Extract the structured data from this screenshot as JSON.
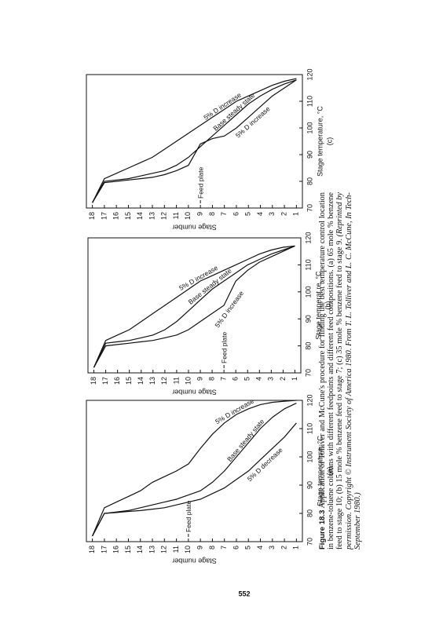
{
  "chart_data": [
    {
      "type": "line",
      "panel": "(a)",
      "x_label": "Stage temperature, °C",
      "y_label": "Stage number",
      "xlim": [
        70,
        120
      ],
      "xticks": [
        70,
        80,
        90,
        100,
        110,
        120
      ],
      "ylim": [
        0.5,
        18.5
      ],
      "yticks": [
        1,
        2,
        3,
        4,
        5,
        6,
        7,
        8,
        9,
        10,
        11,
        12,
        13,
        14,
        15,
        16,
        17,
        18
      ],
      "stages": [
        1,
        2,
        3,
        4,
        5,
        6,
        7,
        8,
        9,
        10,
        11,
        12,
        13,
        14,
        15,
        16,
        17,
        18
      ],
      "feed_stage": 10,
      "feed_label": "Feed plate",
      "series": [
        {
          "name": "5% D increase",
          "color": "#111111",
          "values": [
            120,
            119.7,
            119.3,
            118.5,
            117,
            115,
            112,
            108,
            103,
            97.5,
            95,
            93,
            91,
            88,
            86,
            84,
            82,
            72
          ]
        },
        {
          "name": "Base steady state",
          "color": "#111111",
          "values": [
            119,
            117,
            114,
            110,
            105,
            100,
            95,
            91,
            88,
            86.5,
            85,
            84,
            83,
            82,
            81,
            80.5,
            80,
            72
          ]
        },
        {
          "name": "5% D decrease",
          "color": "#111111",
          "values": [
            112,
            107,
            103,
            99,
            95,
            92,
            89,
            87,
            85,
            84,
            83,
            82,
            81.5,
            81,
            80.7,
            80.3,
            80,
            72
          ]
        }
      ]
    },
    {
      "type": "line",
      "panel": "(b)",
      "x_label": "Stage temperat.re, °C",
      "y_label": "Stage number",
      "xlim": [
        70,
        120
      ],
      "xticks": [
        70,
        80,
        90,
        100,
        110,
        120
      ],
      "ylim": [
        0.5,
        18.5
      ],
      "yticks": [
        1,
        2,
        3,
        4,
        5,
        6,
        7,
        8,
        9,
        10,
        11,
        12,
        13,
        14,
        15,
        16,
        17,
        18
      ],
      "stages": [
        1,
        2,
        3,
        4,
        5,
        6,
        7,
        8,
        9,
        10,
        11,
        12,
        13,
        14,
        15,
        16,
        17,
        18
      ],
      "feed_stage": 7,
      "feed_label": "Feed plate",
      "series": [
        {
          "name": "5% D increase",
          "color": "#111111",
          "values": [
            117,
            116.5,
            115.5,
            114,
            112,
            110,
            108,
            106,
            104,
            101,
            98,
            95,
            92,
            89,
            86,
            84,
            82,
            72
          ]
        },
        {
          "name": "Base steady state",
          "color": "#111111",
          "values": [
            117,
            115.5,
            114,
            112,
            110,
            107,
            104,
            101,
            97,
            93,
            89,
            86,
            84,
            83,
            82,
            81.5,
            81,
            72
          ]
        },
        {
          "name": "5% D increase",
          "color": "#111111",
          "values": [
            117,
            115,
            113,
            111,
            108,
            104,
            95,
            92,
            89,
            86,
            84,
            83,
            82,
            81.5,
            81,
            80.5,
            80,
            72
          ]
        }
      ]
    },
    {
      "type": "line",
      "panel": "(c)",
      "x_label": "Stage temperature, °C",
      "y_label": "Stage number",
      "xlim": [
        70,
        120
      ],
      "xticks": [
        70,
        80,
        90,
        100,
        110,
        120
      ],
      "ylim": [
        0.5,
        18.5
      ],
      "yticks": [
        1,
        2,
        3,
        4,
        5,
        6,
        7,
        8,
        9,
        10,
        11,
        12,
        13,
        14,
        15,
        16,
        17,
        18
      ],
      "stages": [
        1,
        2,
        3,
        4,
        5,
        6,
        7,
        8,
        9,
        10,
        11,
        12,
        13,
        14,
        15,
        16,
        17,
        18
      ],
      "feed_stage": 9,
      "feed_label": "Feed plate",
      "series": [
        {
          "name": "5% D increase",
          "color": "#111111",
          "values": [
            118.5,
            117.5,
            116,
            114,
            112,
            110,
            107,
            104,
            101,
            98,
            95,
            92,
            89,
            87,
            85,
            83,
            81,
            72
          ]
        },
        {
          "name": "Base steady state",
          "color": "#111111",
          "values": [
            118,
            116.5,
            114.5,
            112,
            109,
            105,
            101,
            97,
            93,
            89,
            86,
            84,
            83,
            82,
            81,
            80.5,
            80,
            72
          ]
        },
        {
          "name": "5% D increase",
          "color": "#111111",
          "values": [
            118,
            115,
            112,
            108,
            104,
            100,
            97,
            96,
            94,
            86,
            84,
            82.5,
            81.5,
            81,
            80.5,
            80,
            79.5,
            72
          ]
        }
      ]
    }
  ],
  "caption": {
    "label": "Figure 18.3",
    "text": "Application of Tolliver and McCune's procedure for finding the best temperature control location in benzene-toluene columns with different feedpoints and different feed compositions. (a) 65 mole % benzene feed to stage 10; (b) 15 mole % benzene feed to stage 7; (c) 35 mole % benzene feed to stage 9.",
    "credit": "(Reprinted by permission. Copyright © Instrument Society of America 1980. From T. L. Tolliver and L. C. McCune, In Tech-September 1980.)"
  },
  "page_number": "552"
}
